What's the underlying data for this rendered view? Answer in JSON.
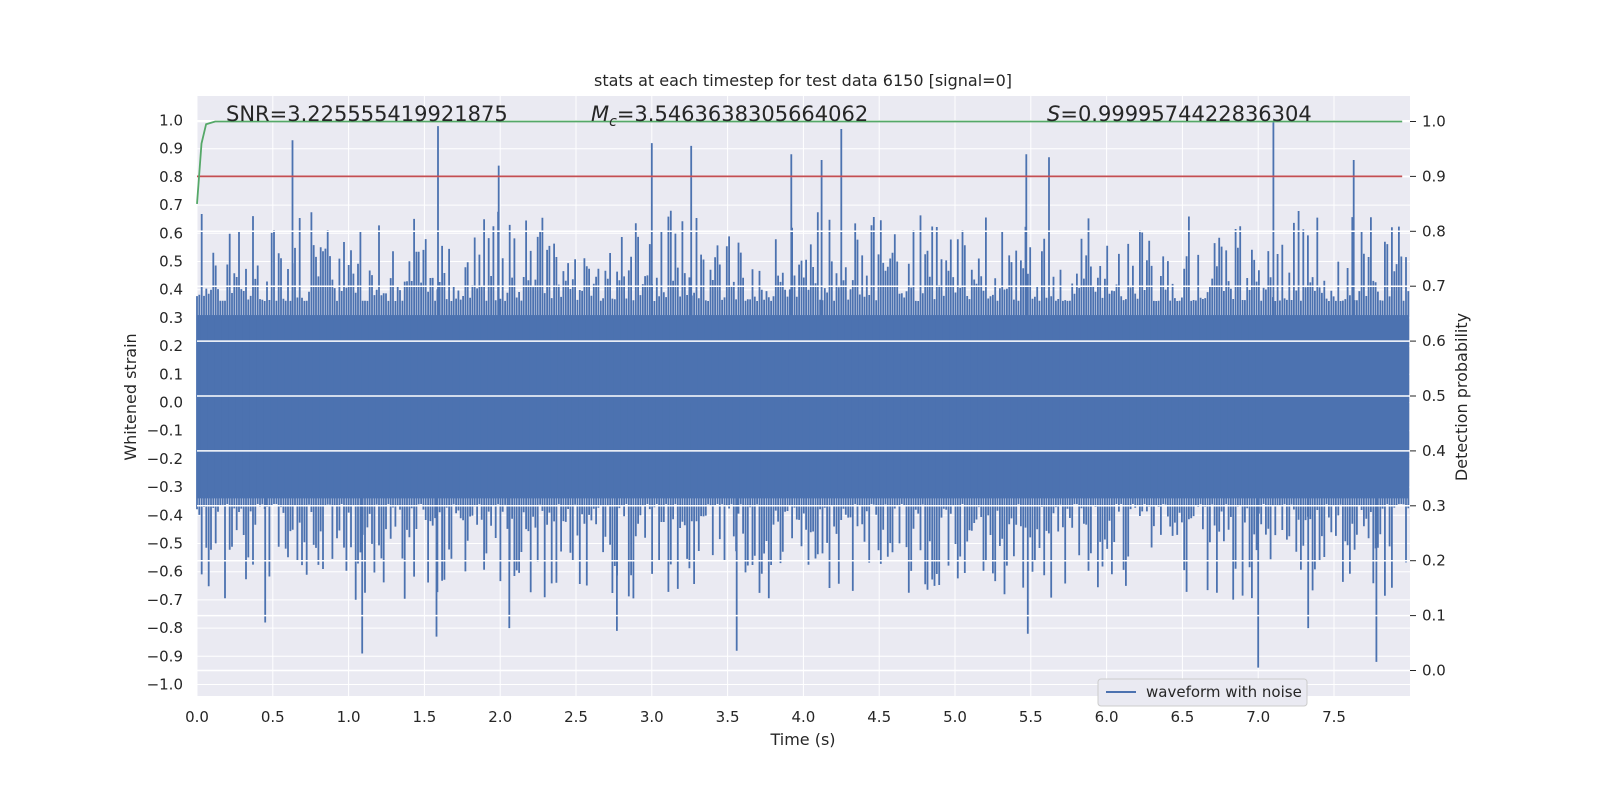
{
  "chart_data": {
    "type": "line",
    "title": "stats at each timestep for test data 6150 [signal=0]",
    "xlabel": "Time (s)",
    "ylabel": "Whitened strain",
    "ylabel_right": "Detection probability",
    "xlim": [
      0,
      8
    ],
    "ylim": [
      -1.05,
      1.05
    ],
    "ylim_right": [
      -0.05,
      1.05
    ],
    "x_ticks": [
      0.0,
      0.5,
      1.0,
      1.5,
      2.0,
      2.5,
      3.0,
      3.5,
      4.0,
      4.5,
      5.0,
      5.5,
      6.0,
      6.5,
      7.0,
      7.5
    ],
    "x_tick_labels": [
      "0.0",
      "0.5",
      "1.0",
      "1.5",
      "2.0",
      "2.5",
      "3.0",
      "3.5",
      "4.0",
      "4.5",
      "5.0",
      "5.5",
      "6.0",
      "6.5",
      "7.0",
      "7.5"
    ],
    "y_ticks": [
      1.0,
      0.9,
      0.8,
      0.7,
      0.6,
      0.5,
      0.4,
      0.3,
      0.2,
      0.1,
      0.0,
      -0.1,
      -0.2,
      -0.3,
      -0.4,
      -0.5,
      -0.6,
      -0.7,
      -0.8,
      -0.9,
      -1.0
    ],
    "y_tick_labels": [
      "1.0",
      "0.9",
      "0.8",
      "0.7",
      "0.6",
      "0.5",
      "0.4",
      "0.3",
      "0.2",
      "0.1",
      "0.0",
      "-0.1",
      "-0.2",
      "-0.3",
      "-0.4",
      "-0.5",
      "-0.6",
      "-0.7",
      "-0.8",
      "-0.9",
      "-1.0"
    ],
    "y_right_ticks": [
      1.0,
      0.9,
      0.8,
      0.7,
      0.6,
      0.5,
      0.4,
      0.3,
      0.2,
      0.1,
      0.0
    ],
    "y_right_tick_labels": [
      "1.0",
      "0.9",
      "0.8",
      "0.7",
      "0.6",
      "0.5",
      "0.4",
      "0.3",
      "0.2",
      "0.1",
      "0.0"
    ],
    "annotations": {
      "snr": "SNR=3.225555419921875",
      "mc_symbol": "M",
      "mc_subscript": "c",
      "mc_value": "=3.5463638305664062",
      "s_symbol": "S",
      "s_value": "=0.9999574422836304"
    },
    "legend": {
      "label": "waveform with noise",
      "placement": "lower-right"
    },
    "series": [
      {
        "name": "waveform with noise",
        "color": "#4c72b0",
        "axis": "left",
        "n_samples": 520,
        "amplitude_typical": 0.4,
        "amplitude_max": 1.0,
        "spikes": [
          {
            "x": 0.63,
            "y": 0.93
          },
          {
            "x": 1.59,
            "y": 0.98
          },
          {
            "x": 1.99,
            "y": 0.84
          },
          {
            "x": 3.0,
            "y": 0.92
          },
          {
            "x": 3.26,
            "y": 0.91
          },
          {
            "x": 3.92,
            "y": 0.88
          },
          {
            "x": 4.12,
            "y": 0.86
          },
          {
            "x": 4.25,
            "y": 0.97
          },
          {
            "x": 5.47,
            "y": 0.88
          },
          {
            "x": 5.62,
            "y": 0.87
          },
          {
            "x": 7.1,
            "y": 1.0
          },
          {
            "x": 7.63,
            "y": 0.86
          },
          {
            "x": 0.45,
            "y": -0.78
          },
          {
            "x": 1.09,
            "y": -0.89
          },
          {
            "x": 1.58,
            "y": -0.83
          },
          {
            "x": 2.06,
            "y": -0.8
          },
          {
            "x": 2.77,
            "y": -0.81
          },
          {
            "x": 3.56,
            "y": -0.88
          },
          {
            "x": 5.48,
            "y": -0.82
          },
          {
            "x": 7.0,
            "y": -0.94
          },
          {
            "x": 7.33,
            "y": -0.8
          },
          {
            "x": 7.78,
            "y": -0.92
          }
        ]
      },
      {
        "name": "detection probability",
        "color": "#55a868",
        "axis": "right",
        "x": [
          0.0,
          0.03,
          0.06,
          0.12,
          7.95
        ],
        "y": [
          0.85,
          0.96,
          0.995,
          1.0,
          1.0
        ]
      },
      {
        "name": "threshold",
        "color": "#c44e52",
        "axis": "right",
        "x": [
          0.0,
          7.95
        ],
        "y": [
          0.9,
          0.9
        ]
      }
    ]
  }
}
